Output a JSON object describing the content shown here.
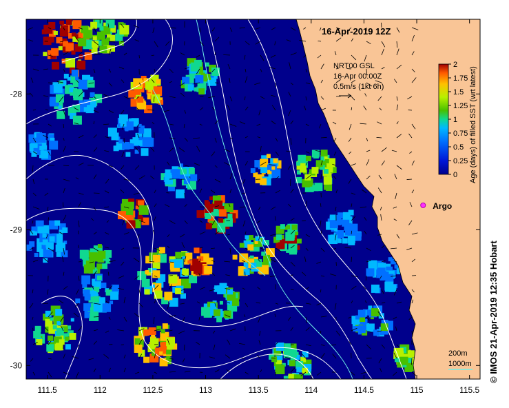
{
  "map": {
    "title": "16-Apr-2019 12Z",
    "product": "NRT00 GSL",
    "vector_time": "16-Apr 00:00Z",
    "vector_scale": "0.5m/s (1kt 6h)",
    "lon_ticks": [
      "111.5",
      "112",
      "112.5",
      "113",
      "113.5",
      "114",
      "114.5",
      "115",
      "115.5"
    ],
    "lat_ticks": [
      "-28",
      "-29",
      "-30"
    ],
    "lon_range": [
      111.3,
      115.6
    ],
    "lat_range": [
      -27.45,
      -30.1
    ],
    "float_label": "Argo",
    "float_position": {
      "lon": 115.06,
      "lat": -28.82
    },
    "contours": {
      "depth_200": "200m",
      "depth_1000": "1000m"
    },
    "credit": "© IMOS 21-Apr-2019 12:35 Hobart"
  },
  "colorbar": {
    "label": "Age (days) of filled SST (wrt latest)",
    "ticks": [
      "0",
      "0.25",
      "0.5",
      "0.75",
      "1",
      "1.25",
      "1.5",
      "1.75",
      "2"
    ],
    "colors": [
      "#00008c",
      "#0015d6",
      "#0070ff",
      "#00b8ff",
      "#10d890",
      "#48c000",
      "#b8f000",
      "#ffc000",
      "#ff5a00",
      "#a00000"
    ]
  },
  "colors": {
    "land": "#f9c596",
    "argo_marker": "#ff30ff",
    "vector": "#000000",
    "contour_200": "#6ff0e8",
    "contour_1000": "#ffffff"
  }
}
